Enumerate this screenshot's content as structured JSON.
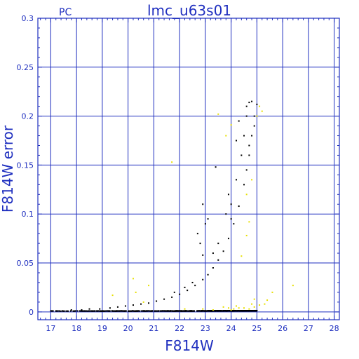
{
  "chart_data": {
    "type": "scatter",
    "title": "lmc_u63s01",
    "corner_label": "PC",
    "xlabel": "F814W",
    "ylabel": "F814W error",
    "xlim": [
      16.5,
      28.2
    ],
    "ylim": [
      -0.008,
      0.3
    ],
    "grid": true,
    "x_ticks": [
      "17",
      "18",
      "19",
      "20",
      "21",
      "22",
      "23",
      "24",
      "25",
      "26",
      "27",
      "28"
    ],
    "y_ticks": [
      "0",
      "0.05",
      "0.1",
      "0.15",
      "0.2",
      "0.25",
      "0.3"
    ],
    "series": [
      {
        "color": "#000000",
        "curve": {
          "a": 0.0009,
          "b": 5.5e-06,
          "c": 0.43,
          "x0": 17.0,
          "x1": 25.0
        },
        "points": [
          [
            17.0,
            0.001
          ],
          [
            17.2,
            0.001
          ],
          [
            17.8,
            0.002
          ],
          [
            18.2,
            0.002
          ],
          [
            18.5,
            0.003
          ],
          [
            18.9,
            0.003
          ],
          [
            19.3,
            0.004
          ],
          [
            19.6,
            0.005
          ],
          [
            19.9,
            0.006
          ],
          [
            20.2,
            0.007
          ],
          [
            20.5,
            0.008
          ],
          [
            20.8,
            0.009
          ],
          [
            21.1,
            0.011
          ],
          [
            21.4,
            0.013
          ],
          [
            21.7,
            0.015
          ],
          [
            22.0,
            0.018
          ],
          [
            22.3,
            0.022
          ],
          [
            22.6,
            0.027
          ],
          [
            22.9,
            0.033
          ],
          [
            23.1,
            0.038
          ],
          [
            23.3,
            0.045
          ],
          [
            23.5,
            0.053
          ],
          [
            23.7,
            0.062
          ],
          [
            23.9,
            0.075
          ],
          [
            24.1,
            0.09
          ],
          [
            24.3,
            0.108
          ],
          [
            24.5,
            0.13
          ],
          [
            24.6,
            0.145
          ],
          [
            24.7,
            0.16
          ],
          [
            24.8,
            0.18
          ],
          [
            24.9,
            0.2
          ],
          [
            25.0,
            0.212
          ],
          [
            24.7,
            0.214
          ],
          [
            24.8,
            0.215
          ],
          [
            24.6,
            0.21
          ],
          [
            23.4,
            0.148
          ],
          [
            22.9,
            0.11
          ],
          [
            23.0,
            0.09
          ],
          [
            22.7,
            0.08
          ],
          [
            22.8,
            0.07
          ],
          [
            23.1,
            0.095
          ],
          [
            23.9,
            0.12
          ],
          [
            24.2,
            0.135
          ],
          [
            24.4,
            0.16
          ],
          [
            24.2,
            0.175
          ],
          [
            24.5,
            0.18
          ],
          [
            24.3,
            0.195
          ],
          [
            24.6,
            0.2
          ],
          [
            21.8,
            0.02
          ],
          [
            22.2,
            0.025
          ],
          [
            23.5,
            0.07
          ],
          [
            23.8,
            0.1
          ],
          [
            24.0,
            0.095
          ],
          [
            24.0,
            0.11
          ],
          [
            22.9,
            0.058
          ],
          [
            23.3,
            0.06
          ],
          [
            22.5,
            0.03
          ],
          [
            24.7,
            0.17
          ],
          [
            24.9,
            0.19
          ]
        ]
      },
      {
        "color": "#e8e000",
        "points": [
          [
            19.4,
            0.017
          ],
          [
            20.2,
            0.034
          ],
          [
            20.3,
            0.02
          ],
          [
            20.8,
            0.027
          ],
          [
            20.6,
            0.01
          ],
          [
            21.7,
            0.153
          ],
          [
            22.9,
            0.003
          ],
          [
            23.3,
            0.002
          ],
          [
            23.5,
            0.202
          ],
          [
            23.7,
            0.005
          ],
          [
            23.8,
            0.18
          ],
          [
            24.0,
            0.002
          ],
          [
            24.0,
            0.191
          ],
          [
            24.1,
            0.003
          ],
          [
            24.3,
            0.004
          ],
          [
            24.4,
            0.057
          ],
          [
            24.5,
            0.004
          ],
          [
            24.6,
            0.078
          ],
          [
            24.6,
            0.12
          ],
          [
            24.7,
            0.003
          ],
          [
            24.7,
            0.092
          ],
          [
            24.8,
            0.135
          ],
          [
            24.9,
            0.013
          ],
          [
            24.9,
            0.005
          ],
          [
            25.0,
            0.2
          ],
          [
            25.1,
            0.007
          ],
          [
            25.1,
            0.21
          ],
          [
            25.2,
            0.205
          ],
          [
            25.3,
            0.008
          ],
          [
            25.4,
            0.012
          ],
          [
            26.4,
            0.027
          ],
          [
            22.2,
            0.003
          ],
          [
            23.9,
            0.004
          ],
          [
            24.2,
            0.006
          ],
          [
            24.8,
            0.008
          ],
          [
            25.6,
            0.02
          ]
        ]
      }
    ]
  }
}
